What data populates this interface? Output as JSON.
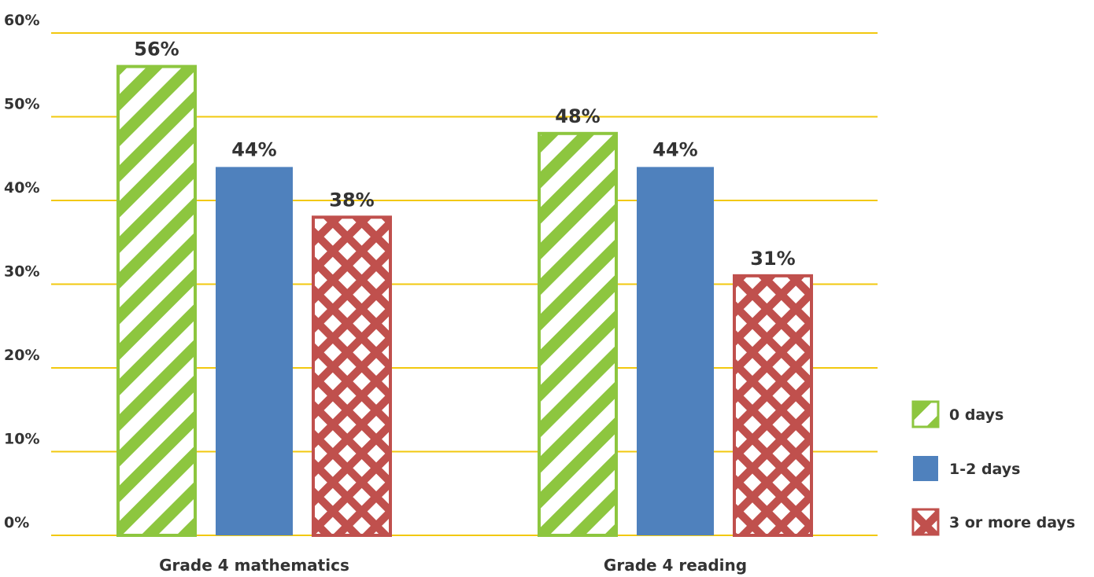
{
  "chart_data": {
    "type": "bar",
    "categories": [
      "Grade 4 mathematics",
      "Grade 4 reading"
    ],
    "series": [
      {
        "name": "0 days",
        "values": [
          56,
          48
        ],
        "labels": [
          "56%",
          "48%"
        ],
        "color": "#8dc63f",
        "pattern": "diagonal-stripes"
      },
      {
        "name": "1-2 days",
        "values": [
          44,
          44
        ],
        "labels": [
          "44%",
          "44%"
        ],
        "color": "#4f81bd",
        "pattern": "solid"
      },
      {
        "name": "3 or more days",
        "values": [
          38,
          31
        ],
        "labels": [
          "38%",
          "31%"
        ],
        "color": "#c0504d",
        "pattern": "diamond-check"
      }
    ],
    "y_ticks": [
      "0%",
      "10%",
      "20%",
      "30%",
      "40%",
      "50%",
      "60%"
    ],
    "ylim": [
      0,
      60
    ],
    "grid": true,
    "grid_color": "#f2c80f",
    "legend_position": "right"
  }
}
